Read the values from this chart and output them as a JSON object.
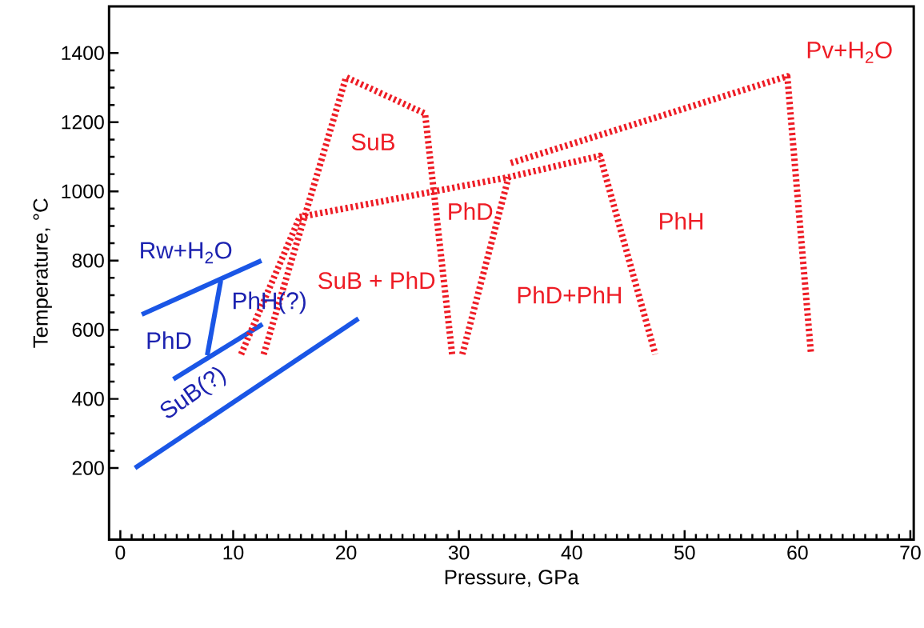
{
  "chart_data": {
    "type": "line",
    "xlabel": "Pressure, GPa",
    "ylabel": "Temperature, °C",
    "xlim": [
      -1,
      70.3
    ],
    "ylim": [
      -7,
      1535
    ],
    "xticks": [
      0,
      10,
      20,
      30,
      40,
      50,
      60,
      70
    ],
    "yticks": [
      200,
      400,
      600,
      800,
      1000,
      1200,
      1400
    ],
    "series": [
      {
        "color": "#1a56e6",
        "line_style": "solid",
        "x": [
          1.3,
          21.1
        ],
        "values": [
          200,
          632
        ]
      },
      {
        "color": "#1a56e6",
        "line_style": "solid",
        "x": [
          1.9,
          12.5
        ],
        "values": [
          644,
          800
        ]
      },
      {
        "color": "#1a56e6",
        "line_style": "solid",
        "x": [
          4.7,
          12.6
        ],
        "values": [
          457,
          616
        ]
      },
      {
        "color": "#1a56e6",
        "line_style": "solid",
        "x": [
          8.9,
          7.7
        ],
        "values": [
          742,
          526
        ]
      },
      {
        "color": "#ee1c25",
        "line_style": "dotted",
        "x": [
          10.7,
          15.9
        ],
        "values": [
          529,
          926
        ]
      },
      {
        "color": "#ee1c25",
        "line_style": "dotted",
        "x": [
          12.7,
          20.0,
          27.0,
          29.4
        ],
        "values": [
          529,
          1330,
          1225,
          529
        ]
      },
      {
        "color": "#ee1c25",
        "line_style": "dotted",
        "x": [
          15.9,
          34.4,
          42.5,
          47.4
        ],
        "values": [
          926,
          1041,
          1103,
          529
        ]
      },
      {
        "color": "#ee1c25",
        "line_style": "dotted",
        "x": [
          30.3,
          34.4
        ],
        "values": [
          529,
          1041
        ]
      },
      {
        "color": "#ee1c25",
        "line_style": "dotted",
        "x": [
          34.6,
          59.1,
          61.2
        ],
        "values": [
          1082,
          1333,
          529
        ]
      }
    ],
    "annotations": [
      "Rw+H$_{2}$O",
      "PhH(?)",
      "PhD",
      "SuB(?)",
      "SuB",
      "PhD",
      "SuB + PhD",
      "PhD+PhH",
      "PhH",
      "Pv+H$_{2}$O"
    ]
  }
}
